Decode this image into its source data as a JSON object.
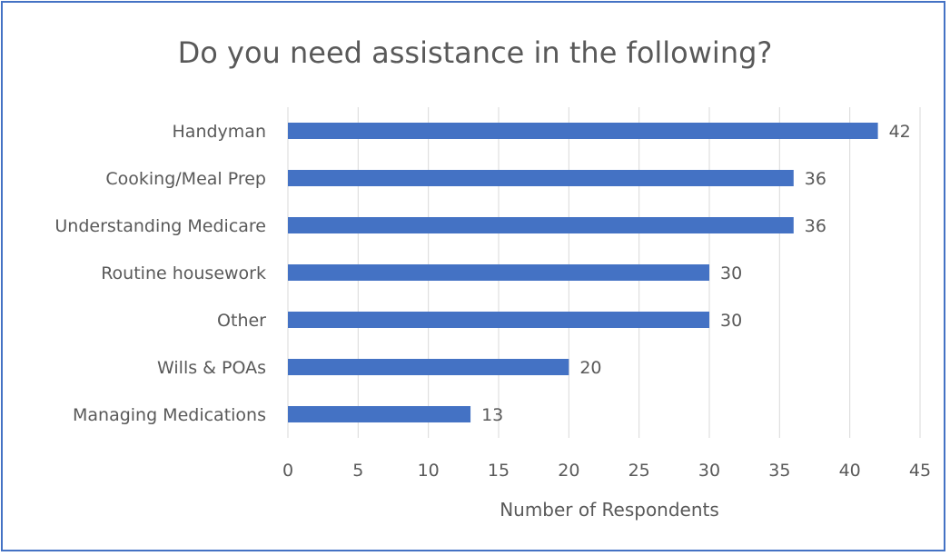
{
  "chart_data": {
    "type": "bar",
    "orientation": "horizontal",
    "title": "Do you need assistance in the following?",
    "xlabel": "Number of Respondents",
    "ylabel": "",
    "categories": [
      "Handyman",
      "Cooking/Meal Prep",
      "Understanding Medicare",
      "Routine housework",
      "Other",
      "Wills & POAs",
      "Managing Medications"
    ],
    "values": [
      42,
      36,
      36,
      30,
      30,
      20,
      13
    ],
    "xlim": [
      0,
      45
    ],
    "xticks": [
      0,
      5,
      10,
      15,
      20,
      25,
      30,
      35,
      40,
      45
    ],
    "grid": true,
    "data_labels": true,
    "bar_color": "#4472c4",
    "grid_color": "#d9d9d9",
    "text_color": "#595959",
    "border_color": "#4472c4"
  }
}
